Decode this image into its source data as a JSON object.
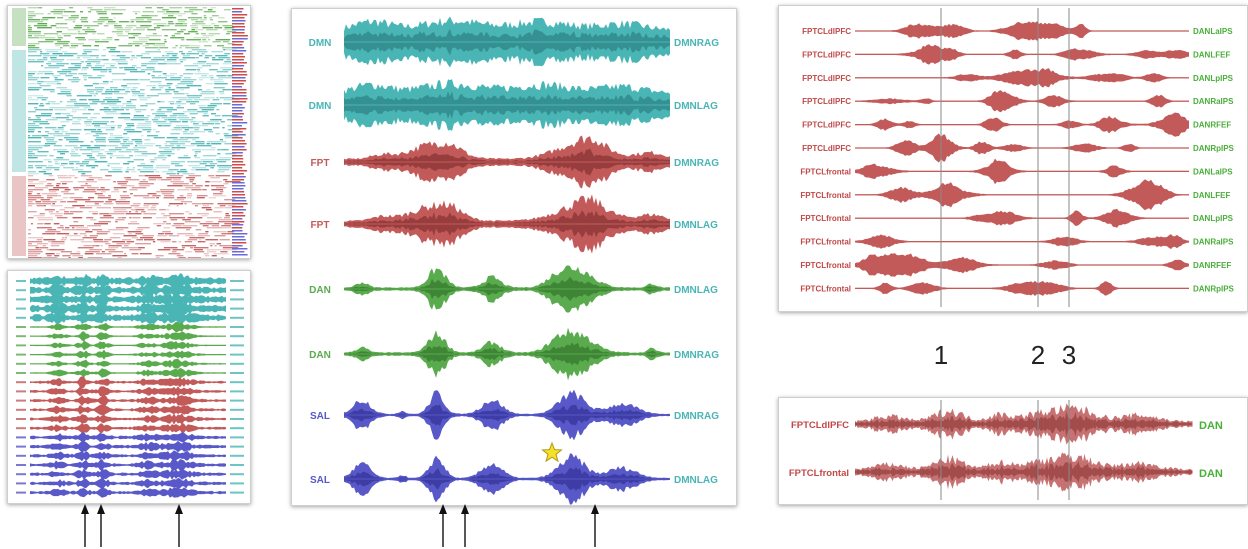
{
  "colors": {
    "dmn": "#4ab5b5",
    "dmn_dark": "#2f8585",
    "fpt": "#c25a5a",
    "fpt_dark": "#8a3434",
    "dan": "#5aaa4e",
    "dan_dark": "#357a2e",
    "sal": "#5858c8",
    "sal_dark": "#34349a",
    "dan_label": "#4aae3a",
    "fpt_label": "#c04848"
  },
  "center_panel": {
    "rows": [
      {
        "left": "DMN",
        "right": "DMNRAG",
        "group": "dmn"
      },
      {
        "left": "DMN",
        "right": "DMNLAG",
        "group": "dmn"
      },
      {
        "left": "FPT",
        "right": "DMNRAG",
        "group": "fpt"
      },
      {
        "left": "FPT",
        "right": "DMNLAG",
        "group": "fpt"
      },
      {
        "left": "DAN",
        "right": "DMNLAG",
        "group": "dan"
      },
      {
        "left": "DAN",
        "right": "DMNRAG",
        "group": "dan"
      },
      {
        "left": "SAL",
        "right": "DMNRAG",
        "group": "sal"
      },
      {
        "left": "SAL",
        "right": "DMNLAG",
        "group": "sal"
      }
    ],
    "star_icon": "star-icon"
  },
  "right_top_panel": {
    "rows": [
      {
        "left": "FPTCLdlPFC",
        "right": "DANLaIPS"
      },
      {
        "left": "FPTCLdlPFC",
        "right": "DANLFEF"
      },
      {
        "left": "FPTCLdlPFC",
        "right": "DANLpIPS"
      },
      {
        "left": "FPTCLdlPFC",
        "right": "DANRaIPS"
      },
      {
        "left": "FPTCLdlPFC",
        "right": "DANRFEF"
      },
      {
        "left": "FPTCLdlPFC",
        "right": "DANRpIPS"
      },
      {
        "left": "FPTCLfrontal",
        "right": "DANLaIPS"
      },
      {
        "left": "FPTCLfrontal",
        "right": "DANLFEF"
      },
      {
        "left": "FPTCLfrontal",
        "right": "DANLpIPS"
      },
      {
        "left": "FPTCLfrontal",
        "right": "DANRaIPS"
      },
      {
        "left": "FPTCLfrontal",
        "right": "DANRFEF"
      },
      {
        "left": "FPTCLfrontal",
        "right": "DANRpIPS"
      }
    ]
  },
  "markers": [
    {
      "label": "1"
    },
    {
      "label": "2"
    },
    {
      "label": "3"
    }
  ],
  "right_bottom_panel": {
    "rows": [
      {
        "left": "FPTCLdlPFC",
        "right": "DAN"
      },
      {
        "left": "FPTCLfrontal",
        "right": "DAN"
      }
    ]
  },
  "arrow_icon": "up-arrow-icon"
}
